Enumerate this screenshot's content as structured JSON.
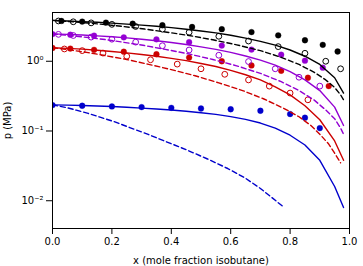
{
  "chart_data": {
    "type": "line",
    "xlabel": "x (mole fraction isobutane)",
    "ylabel": "p (MPa)",
    "log": "y",
    "grid": false,
    "xlim": [
      0.0,
      1.0
    ],
    "ylim": [
      0.004,
      5.0
    ],
    "xticks": [
      {
        "value": 0.0,
        "label": "0.0"
      },
      0.2,
      0.4,
      0.6,
      0.8,
      {
        "value": 1.0,
        "label": "1.0"
      }
    ],
    "yticks": [
      {
        "value": 0.01,
        "label": "10⁻²"
      },
      {
        "value": 0.1,
        "label": "10⁻¹"
      },
      {
        "value": 1,
        "label": "10⁰"
      }
    ],
    "series": [
      {
        "type": "line",
        "line_style": "solid",
        "color": "#0000CC",
        "x": [
          0.0,
          0.05,
          0.1,
          0.15,
          0.2,
          0.25,
          0.3,
          0.35,
          0.4,
          0.45,
          0.5,
          0.55,
          0.6,
          0.65,
          0.7,
          0.75,
          0.8,
          0.85,
          0.9,
          0.95,
          0.98
        ],
        "values": [
          0.237,
          0.235,
          0.232,
          0.228,
          0.224,
          0.219,
          0.213,
          0.207,
          0.2,
          0.192,
          0.183,
          0.173,
          0.161,
          0.147,
          0.13,
          0.11,
          0.087,
          0.063,
          0.038,
          0.016,
          0.008
        ]
      },
      {
        "type": "line",
        "line_style": "dashed",
        "color": "#0000CC",
        "x": [
          0.0,
          0.02,
          0.05,
          0.08,
          0.12,
          0.16,
          0.21,
          0.26,
          0.32,
          0.38,
          0.45,
          0.52,
          0.59,
          0.65,
          0.7,
          0.74,
          0.78
        ],
        "values": [
          0.237,
          0.228,
          0.215,
          0.199,
          0.179,
          0.158,
          0.135,
          0.112,
          0.09,
          0.071,
          0.054,
          0.04,
          0.029,
          0.021,
          0.015,
          0.011,
          0.008
        ]
      },
      {
        "type": "scatter",
        "marker": "circle",
        "color": "#0000CC",
        "x": [
          0.0,
          0.1,
          0.2,
          0.3,
          0.4,
          0.5,
          0.6,
          0.7,
          0.8,
          0.85,
          0.9
        ],
        "values": [
          0.235,
          0.23,
          0.225,
          0.22,
          0.215,
          0.21,
          0.205,
          0.195,
          0.175,
          0.155,
          0.11
        ]
      },
      {
        "type": "line",
        "line_style": "solid",
        "color": "#CC0000",
        "x": [
          0.0,
          0.05,
          0.1,
          0.15,
          0.2,
          0.25,
          0.3,
          0.35,
          0.4,
          0.45,
          0.5,
          0.55,
          0.6,
          0.65,
          0.7,
          0.75,
          0.8,
          0.85,
          0.9,
          0.95,
          0.98
        ],
        "values": [
          1.56,
          1.53,
          1.49,
          1.44,
          1.38,
          1.32,
          1.25,
          1.18,
          1.1,
          1.02,
          0.93,
          0.84,
          0.74,
          0.64,
          0.54,
          0.43,
          0.33,
          0.23,
          0.145,
          0.072,
          0.038
        ]
      },
      {
        "type": "line",
        "line_style": "dashed",
        "color": "#CC0000",
        "x": [
          0.0,
          0.03,
          0.07,
          0.12,
          0.18,
          0.25,
          0.32,
          0.4,
          0.48,
          0.56,
          0.64,
          0.71,
          0.78,
          0.83,
          0.87,
          0.9,
          0.93,
          0.95,
          0.97
        ],
        "values": [
          1.56,
          1.51,
          1.43,
          1.33,
          1.2,
          1.06,
          0.91,
          0.76,
          0.62,
          0.49,
          0.38,
          0.29,
          0.21,
          0.16,
          0.12,
          0.09,
          0.065,
          0.048,
          0.035
        ]
      },
      {
        "type": "scatter",
        "marker": "circle",
        "color": "#CC0000",
        "x": [
          0.0,
          0.06,
          0.14,
          0.24,
          0.35,
          0.46,
          0.57,
          0.67,
          0.77,
          0.86,
          0.93
        ],
        "values": [
          1.55,
          1.52,
          1.46,
          1.37,
          1.26,
          1.13,
          1.0,
          0.87,
          0.73,
          0.58,
          0.44
        ]
      },
      {
        "type": "scatter",
        "marker": "open_circle",
        "color": "#CC0000",
        "x": [
          0.04,
          0.1,
          0.17,
          0.25,
          0.33,
          0.42,
          0.5,
          0.58,
          0.66,
          0.73,
          0.8,
          0.86
        ],
        "values": [
          1.5,
          1.42,
          1.31,
          1.18,
          1.05,
          0.91,
          0.78,
          0.65,
          0.54,
          0.44,
          0.35,
          0.28
        ]
      },
      {
        "type": "line",
        "line_style": "solid",
        "color": "#9400D3",
        "x": [
          0.0,
          0.05,
          0.1,
          0.15,
          0.2,
          0.25,
          0.3,
          0.35,
          0.4,
          0.45,
          0.5,
          0.55,
          0.6,
          0.65,
          0.7,
          0.75,
          0.8,
          0.85,
          0.9,
          0.95,
          0.98
        ],
        "values": [
          2.47,
          2.43,
          2.38,
          2.31,
          2.24,
          2.16,
          2.07,
          1.97,
          1.86,
          1.74,
          1.61,
          1.48,
          1.34,
          1.19,
          1.04,
          0.88,
          0.71,
          0.54,
          0.38,
          0.22,
          0.12
        ]
      },
      {
        "type": "line",
        "line_style": "dashed",
        "color": "#9400D3",
        "x": [
          0.0,
          0.03,
          0.07,
          0.12,
          0.18,
          0.24,
          0.31,
          0.38,
          0.46,
          0.54,
          0.62,
          0.7,
          0.77,
          0.83,
          0.88,
          0.92,
          0.95,
          0.97,
          0.98
        ],
        "values": [
          2.47,
          2.4,
          2.31,
          2.19,
          2.04,
          1.87,
          1.68,
          1.48,
          1.27,
          1.06,
          0.86,
          0.67,
          0.51,
          0.38,
          0.28,
          0.2,
          0.15,
          0.11,
          0.09
        ]
      },
      {
        "type": "scatter",
        "marker": "circle",
        "color": "#9400D3",
        "x": [
          0.0,
          0.06,
          0.14,
          0.24,
          0.35,
          0.46,
          0.57,
          0.67,
          0.77,
          0.85,
          0.91
        ],
        "values": [
          2.45,
          2.4,
          2.33,
          2.2,
          2.06,
          1.88,
          1.68,
          1.47,
          1.24,
          1.02,
          0.81
        ]
      },
      {
        "type": "scatter",
        "marker": "open_circle",
        "color": "#9400D3",
        "x": [
          0.02,
          0.07,
          0.13,
          0.2,
          0.28,
          0.37,
          0.46,
          0.56,
          0.66,
          0.75,
          0.83,
          0.9
        ],
        "values": [
          2.43,
          2.34,
          2.22,
          2.07,
          1.88,
          1.67,
          1.45,
          1.22,
          0.99,
          0.78,
          0.59,
          0.44
        ]
      },
      {
        "type": "line",
        "line_style": "solid",
        "color": "#000000",
        "x": [
          0.0,
          0.05,
          0.1,
          0.15,
          0.2,
          0.25,
          0.3,
          0.35,
          0.4,
          0.45,
          0.5,
          0.55,
          0.6,
          0.65,
          0.7,
          0.75,
          0.8,
          0.85,
          0.9,
          0.95,
          0.98
        ],
        "values": [
          3.85,
          3.78,
          3.7,
          3.62,
          3.52,
          3.41,
          3.3,
          3.17,
          3.03,
          2.88,
          2.72,
          2.55,
          2.36,
          2.15,
          1.93,
          1.7,
          1.45,
          1.18,
          0.9,
          0.58,
          0.35
        ]
      },
      {
        "type": "line",
        "line_style": "dashed",
        "color": "#000000",
        "x": [
          0.0,
          0.03,
          0.07,
          0.12,
          0.18,
          0.24,
          0.31,
          0.38,
          0.46,
          0.54,
          0.62,
          0.7,
          0.77,
          0.83,
          0.88,
          0.92,
          0.95,
          0.97,
          0.98
        ],
        "values": [
          3.85,
          3.77,
          3.67,
          3.53,
          3.35,
          3.14,
          2.9,
          2.63,
          2.34,
          2.03,
          1.72,
          1.42,
          1.14,
          0.9,
          0.7,
          0.54,
          0.42,
          0.33,
          0.28
        ]
      },
      {
        "type": "scatter",
        "marker": "circle",
        "color": "#000000",
        "x": [
          0.03,
          0.1,
          0.18,
          0.27,
          0.37,
          0.47,
          0.57,
          0.67,
          0.76,
          0.85,
          0.91,
          0.96
        ],
        "values": [
          3.78,
          3.7,
          3.58,
          3.45,
          3.28,
          3.1,
          2.88,
          2.62,
          2.35,
          2.0,
          1.72,
          1.38
        ]
      },
      {
        "type": "scatter",
        "marker": "open_circle",
        "color": "#000000",
        "x": [
          0.02,
          0.07,
          0.13,
          0.2,
          0.28,
          0.37,
          0.46,
          0.56,
          0.66,
          0.76,
          0.85,
          0.92,
          0.97
        ],
        "values": [
          3.78,
          3.68,
          3.55,
          3.38,
          3.15,
          2.88,
          2.6,
          2.28,
          1.95,
          1.62,
          1.3,
          1.0,
          0.78
        ]
      }
    ]
  }
}
